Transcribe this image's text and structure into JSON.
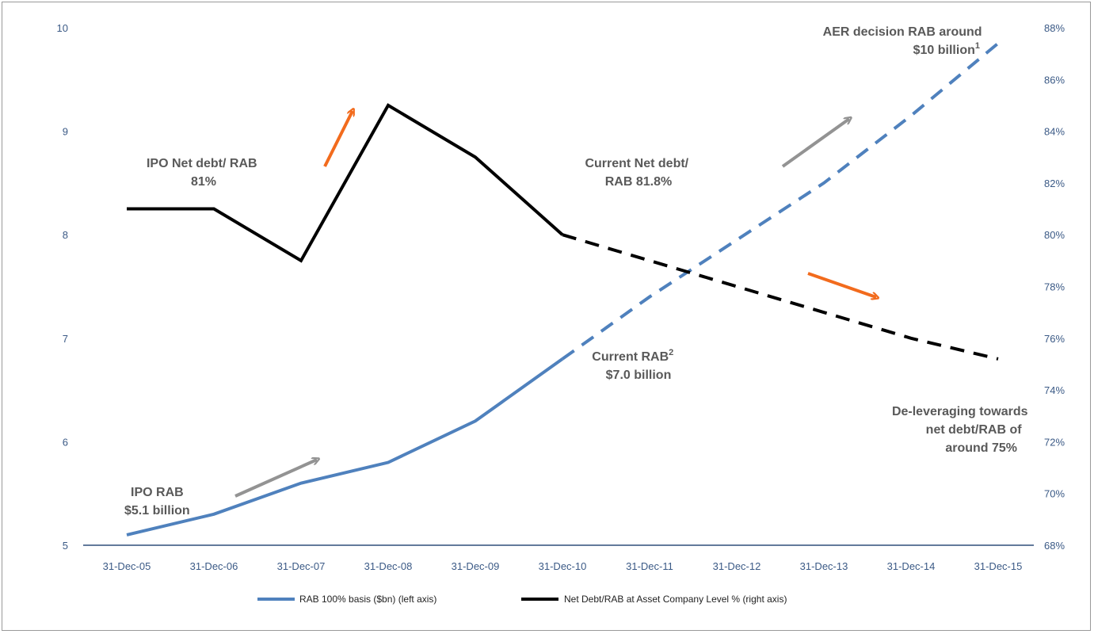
{
  "colors": {
    "rab_line": "#4f81bd",
    "debt_line": "#000000",
    "axis": "#2e4f7a",
    "tick_text": "#3b5a86",
    "annotation_text": "#595959",
    "arrow_orange": "#f26b1d",
    "arrow_gray": "#939393"
  },
  "chart_data": {
    "type": "line",
    "categories": [
      "31-Dec-05",
      "31-Dec-06",
      "31-Dec-07",
      "31-Dec-08",
      "31-Dec-09",
      "31-Dec-10",
      "31-Dec-11",
      "31-Dec-12",
      "31-Dec-13",
      "31-Dec-14",
      "31-Dec-15"
    ],
    "y_left": {
      "range": [
        5,
        10
      ],
      "ticks": [
        "5",
        "6",
        "7",
        "8",
        "9",
        "10"
      ]
    },
    "y_right": {
      "range": [
        68,
        88
      ],
      "ticks": [
        "68%",
        "70%",
        "72%",
        "74%",
        "76%",
        "78%",
        "80%",
        "82%",
        "84%",
        "86%",
        "88%"
      ]
    },
    "grid": false,
    "legend_position": "bottom",
    "series": [
      {
        "name": "RAB 100% basis ($bn) (left axis)",
        "axis": "left",
        "color": "#4f81bd",
        "values": [
          5.1,
          5.3,
          5.6,
          5.8,
          6.2,
          6.8,
          7.4,
          7.95,
          8.5,
          9.15,
          9.85
        ],
        "dashed_from_index": 5
      },
      {
        "name": "Net Debt/RAB at Asset Company Level % (right axis)",
        "axis": "right",
        "color": "#000000",
        "values": [
          81,
          81,
          79,
          85,
          83,
          80,
          79,
          78,
          77,
          76,
          75.2
        ],
        "dashed_from_index": 5
      }
    ],
    "annotations": [
      {
        "id": "ipo-net-debt",
        "lines": [
          "IPO Net debt/ RAB",
          "81%"
        ]
      },
      {
        "id": "current-net-debt",
        "lines": [
          "Current Net debt/",
          "RAB 81.8%"
        ]
      },
      {
        "id": "aer-decision",
        "lines": [
          "AER decision RAB around",
          "$10 billion"
        ],
        "superscript": "1"
      },
      {
        "id": "current-rab",
        "lines": [
          "Current RAB",
          "$7.0 billion"
        ],
        "superscript": "2"
      },
      {
        "id": "deleveraging",
        "lines": [
          "De-leveraging towards",
          "net debt/RAB of",
          "around 75%"
        ]
      },
      {
        "id": "ipo-rab",
        "lines": [
          "IPO RAB",
          "$5.1 billion"
        ]
      }
    ]
  }
}
